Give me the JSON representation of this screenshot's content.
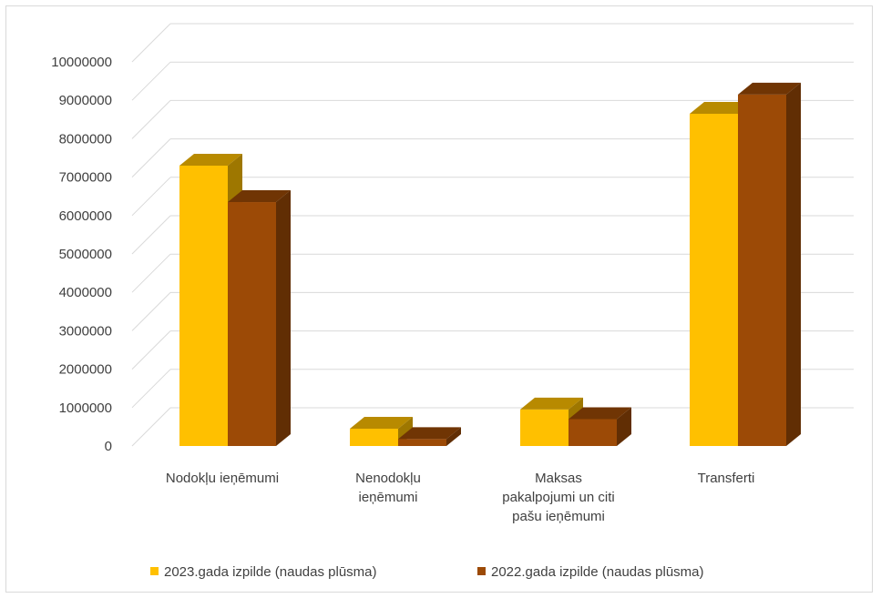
{
  "chart_data": {
    "type": "bar",
    "title": "",
    "xlabel": "",
    "ylabel": "",
    "ylim": [
      0,
      10000000
    ],
    "yticks": [
      "0",
      "1000000",
      "2000000",
      "3000000",
      "4000000",
      "5000000",
      "6000000",
      "7000000",
      "8000000",
      "9000000",
      "10000000"
    ],
    "categories": [
      [
        "Nodokļu ieņēmumi"
      ],
      [
        "Nenodokļu",
        "ieņēmumi"
      ],
      [
        "Maksas",
        "pakalpojumi un citi",
        "pašu ieņēmumi"
      ],
      [
        "Transferti"
      ]
    ],
    "series": [
      {
        "name": "2023.gada izpilde (naudas plūsma)",
        "values": [
          7300000,
          450000,
          950000,
          8650000
        ]
      },
      {
        "name": "2022.gada izpilde (naudas plūsma)",
        "values": [
          6350000,
          180000,
          700000,
          9150000
        ]
      }
    ],
    "grid": true,
    "legend_position": "bottom",
    "style": "3d-clustered-column"
  },
  "colors": {
    "series_2023": "#ffc000",
    "series_2022": "#9c4a06",
    "gridline": "#d9d9d9",
    "text": "#404040"
  }
}
